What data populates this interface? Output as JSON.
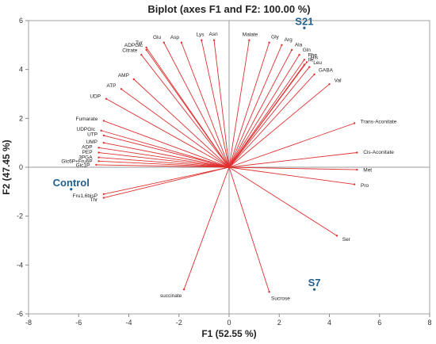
{
  "chart_data": {
    "type": "scatter",
    "subtype": "biplot",
    "title": "Biplot (axes F1 and F2: 100.00 %)",
    "xlabel": "F1 (52.55 %)",
    "ylabel": "F2 (47.45 %)",
    "xlim": [
      -8,
      8
    ],
    "ylim": [
      -6,
      6
    ],
    "xticks": [
      -8,
      -6,
      -4,
      -2,
      0,
      2,
      4,
      6,
      8
    ],
    "yticks": [
      -6,
      -4,
      -2,
      0,
      2,
      4,
      6
    ],
    "grid": false,
    "colors": {
      "vectors": "#e03030",
      "observations": "#1f5f8f",
      "axes": "#999999"
    },
    "variables": [
      {
        "name": "Glu",
        "x": -2.6,
        "y": 5.1
      },
      {
        "name": "Asp",
        "x": -1.9,
        "y": 5.1
      },
      {
        "name": "Lys",
        "x": -1.1,
        "y": 5.2
      },
      {
        "name": "Asn",
        "x": -0.6,
        "y": 5.2
      },
      {
        "name": "Tyr",
        "x": -3.3,
        "y": 4.9
      },
      {
        "name": "ADPGlc",
        "x": -3.3,
        "y": 4.8
      },
      {
        "name": "Citrate",
        "x": -3.5,
        "y": 4.6
      },
      {
        "name": "Malate",
        "x": 0.8,
        "y": 5.2
      },
      {
        "name": "Gly",
        "x": 1.6,
        "y": 5.1
      },
      {
        "name": "Arg",
        "x": 2.1,
        "y": 5.0
      },
      {
        "name": "Ala",
        "x": 2.5,
        "y": 4.8
      },
      {
        "name": "Gln",
        "x": 2.8,
        "y": 4.6
      },
      {
        "name": "Phe",
        "x": 3.0,
        "y": 4.4
      },
      {
        "name": "His",
        "x": 3.1,
        "y": 4.3
      },
      {
        "name": "Ile",
        "x": 3.0,
        "y": 4.2
      },
      {
        "name": "Leu",
        "x": 3.2,
        "y": 4.1
      },
      {
        "name": "GABA",
        "x": 3.4,
        "y": 3.8
      },
      {
        "name": "Val",
        "x": 4.0,
        "y": 3.4
      },
      {
        "name": "AMP",
        "x": -3.8,
        "y": 3.6
      },
      {
        "name": "ATP",
        "x": -4.3,
        "y": 3.2
      },
      {
        "name": "UDP",
        "x": -4.9,
        "y": 2.8
      },
      {
        "name": "Fumarate",
        "x": -5.0,
        "y": 1.9
      },
      {
        "name": "UDPGlc",
        "x": -5.1,
        "y": 1.5
      },
      {
        "name": "UTP",
        "x": -5.0,
        "y": 1.3
      },
      {
        "name": "UMP",
        "x": -5.0,
        "y": 1.0
      },
      {
        "name": "ADP",
        "x": -5.2,
        "y": 0.8
      },
      {
        "name": "PEP",
        "x": -5.2,
        "y": 0.6
      },
      {
        "name": "3PGA",
        "x": -5.2,
        "y": 0.4
      },
      {
        "name": "Glc6P+Fru6P",
        "x": -5.2,
        "y": 0.25
      },
      {
        "name": "Glc1P",
        "x": -5.3,
        "y": 0.1
      },
      {
        "name": "Fru1,6bisP",
        "x": -5.0,
        "y": -1.1
      },
      {
        "name": "Thr",
        "x": -5.0,
        "y": -1.25
      },
      {
        "name": "Trans-Aconitate",
        "x": 5.0,
        "y": 1.8
      },
      {
        "name": "Cis-Aconitate",
        "x": 5.1,
        "y": 0.6
      },
      {
        "name": "Met",
        "x": 5.1,
        "y": -0.1
      },
      {
        "name": "Pro",
        "x": 5.0,
        "y": -0.7
      },
      {
        "name": "Ser",
        "x": 4.3,
        "y": -2.8
      },
      {
        "name": "succinate",
        "x": -1.8,
        "y": -5.0
      },
      {
        "name": "Sucrose",
        "x": 1.6,
        "y": -5.1
      }
    ],
    "observations": [
      {
        "name": "S21",
        "x": 3.0,
        "y": 5.7
      },
      {
        "name": "Control",
        "x": -6.3,
        "y": -0.9
      },
      {
        "name": "S7",
        "x": 3.4,
        "y": -5.0
      }
    ]
  }
}
